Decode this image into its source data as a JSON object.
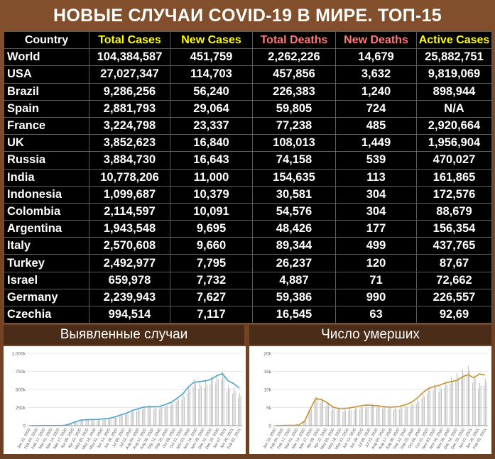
{
  "title": "НОВЫЕ СЛУЧАИ COVID-19 В МИРЕ. ТОП-15",
  "colors": {
    "header_country": "#ffffff",
    "header_cases": "#ffff00",
    "header_deaths": "#ff7a7a",
    "cases_line": "#4aa3c9",
    "deaths_line": "#c8902a",
    "bars": "#bdbdbd"
  },
  "table": {
    "headers": [
      "Country",
      "Total Cases",
      "New Cases",
      "Total Deaths",
      "New Deaths",
      "Active Cases"
    ],
    "rows": [
      [
        "World",
        "104,384,587",
        "451,759",
        "2,262,226",
        "14,679",
        "25,882,751"
      ],
      [
        "USA",
        "27,027,347",
        "114,703",
        "457,856",
        "3,632",
        "9,819,069"
      ],
      [
        "Brazil",
        "9,286,256",
        "56,240",
        "226,383",
        "1,240",
        "898,944"
      ],
      [
        "Spain",
        "2,881,793",
        "29,064",
        "59,805",
        "724",
        "N/A"
      ],
      [
        "France",
        "3,224,798",
        "23,337",
        "77,238",
        "485",
        "2,920,664"
      ],
      [
        "UK",
        "3,852,623",
        "16,840",
        "108,013",
        "1,449",
        "1,956,904"
      ],
      [
        "Russia",
        "3,884,730",
        "16,643",
        "74,158",
        "539",
        "470,027"
      ],
      [
        "India",
        "10,778,206",
        "11,000",
        "154,635",
        "113",
        "161,865"
      ],
      [
        "Indonesia",
        "1,099,687",
        "10,379",
        "30,581",
        "304",
        "172,576"
      ],
      [
        "Colombia",
        "2,114,597",
        "10,091",
        "54,576",
        "304",
        "88,679"
      ],
      [
        "Argentina",
        "1,943,548",
        "9,695",
        "48,426",
        "177",
        "156,354"
      ],
      [
        "Italy",
        "2,570,608",
        "9,660",
        "89,344",
        "499",
        "437,765"
      ],
      [
        "Turkey",
        "2,492,977",
        "7,795",
        "26,237",
        "120",
        "87,67"
      ],
      [
        "Israel",
        "659,978",
        "7,732",
        "4,887",
        "71",
        "72,662"
      ],
      [
        "Germany",
        "2,239,943",
        "7,627",
        "59,386",
        "990",
        "226,557"
      ],
      [
        "Czechia",
        "994,514",
        "7,117",
        "16,545",
        "63",
        "92,69"
      ]
    ]
  },
  "chart_data": [
    {
      "type": "bar",
      "title": "Выявленные случаи",
      "ylim": [
        0,
        1000000
      ],
      "yticks": [
        "0",
        "250k",
        "500k",
        "750k",
        "1,000k"
      ],
      "xticks": [
        "Jan 22, 2020",
        "Feb 04, 2020",
        "Feb 17, 2020",
        "Mar 01, 2020",
        "Mar 14, 2020",
        "Mar 27, 2020",
        "Apr 09, 2020",
        "Apr 22, 2020",
        "May 05, 2020",
        "May 18, 2020",
        "May 31, 2020",
        "Jun 13, 2020",
        "Jun 26, 2020",
        "Jul 09, 2020",
        "Jul 22, 2020",
        "Aug 04, 2020",
        "Aug 17, 2020",
        "Aug 30, 2020",
        "Sep 12, 2020",
        "Sep 25, 2020",
        "Oct 08, 2020",
        "Oct 21, 2020",
        "Nov 03, 2020",
        "Nov 16, 2020",
        "Nov 29, 2020",
        "Dec 12, 2020",
        "Dec 25, 2020",
        "Jan 07, 2021",
        "Jan 20, 2021",
        "Feb 02, 2021"
      ],
      "series": [
        {
          "kind": "bars",
          "values": [
            0,
            2000,
            3000,
            2000,
            1000,
            2000,
            4000,
            30000,
            50000,
            80000,
            85000,
            80000,
            90000,
            95000,
            100000,
            125000,
            150000,
            175000,
            215000,
            235000,
            265000,
            285000,
            260000,
            275000,
            300000,
            330000,
            390000,
            430000,
            530000,
            640000,
            600000,
            620000,
            680000,
            700000,
            740000,
            560000,
            520000,
            450000
          ]
        },
        {
          "kind": "line",
          "values": [
            0,
            1000,
            2000,
            2000,
            2000,
            3000,
            5000,
            25000,
            55000,
            78000,
            82000,
            84000,
            88000,
            95000,
            102000,
            122000,
            148000,
            172000,
            210000,
            232000,
            255000,
            262000,
            262000,
            270000,
            295000,
            325000,
            380000,
            440000,
            540000,
            600000,
            610000,
            620000,
            640000,
            690000,
            720000,
            620000,
            580000,
            520000
          ]
        }
      ]
    },
    {
      "type": "bar",
      "title": "Число умерших",
      "ylim": [
        0,
        20000
      ],
      "yticks": [
        "0",
        "5k",
        "10k",
        "15k",
        "20k"
      ],
      "xticks": [
        "Jan 22, 2020",
        "Feb 04, 2020",
        "Feb 17, 2020",
        "Mar 01, 2020",
        "Mar 14, 2020",
        "Mar 27, 2020",
        "Apr 09, 2020",
        "Apr 22, 2020",
        "May 05, 2020",
        "May 18, 2020",
        "May 31, 2020",
        "Jun 13, 2020",
        "Jun 26, 2020",
        "Jul 09, 2020",
        "Jul 22, 2020",
        "Aug 04, 2020",
        "Aug 17, 2020",
        "Aug 30, 2020",
        "Sep 12, 2020",
        "Sep 25, 2020",
        "Oct 08, 2020",
        "Oct 21, 2020",
        "Nov 03, 2020",
        "Nov 16, 2020",
        "Nov 29, 2020",
        "Dec 12, 2020",
        "Dec 25, 2020",
        "Jan 07, 2021",
        "Jan 20, 2021",
        "Feb 02, 2021"
      ],
      "series": [
        {
          "kind": "bars",
          "values": [
            0,
            50,
            80,
            100,
            200,
            1500,
            5000,
            8000,
            7500,
            6500,
            5000,
            5000,
            4500,
            4800,
            5000,
            5300,
            5600,
            6000,
            5700,
            5500,
            5300,
            5100,
            5300,
            5500,
            6200,
            7200,
            8800,
            10500,
            11500,
            11000,
            12200,
            13500,
            14500,
            15500,
            16500,
            14000,
            12000,
            13000
          ]
        },
        {
          "kind": "line",
          "values": [
            0,
            50,
            80,
            100,
            200,
            1200,
            4500,
            7500,
            7200,
            6400,
            5200,
            4700,
            4700,
            4900,
            5200,
            5500,
            5700,
            5600,
            5500,
            5300,
            5100,
            5200,
            5400,
            5800,
            6500,
            7600,
            9200,
            10300,
            10800,
            11200,
            11800,
            12200,
            12500,
            13500,
            14100,
            13200,
            14300,
            14000
          ]
        }
      ]
    }
  ]
}
